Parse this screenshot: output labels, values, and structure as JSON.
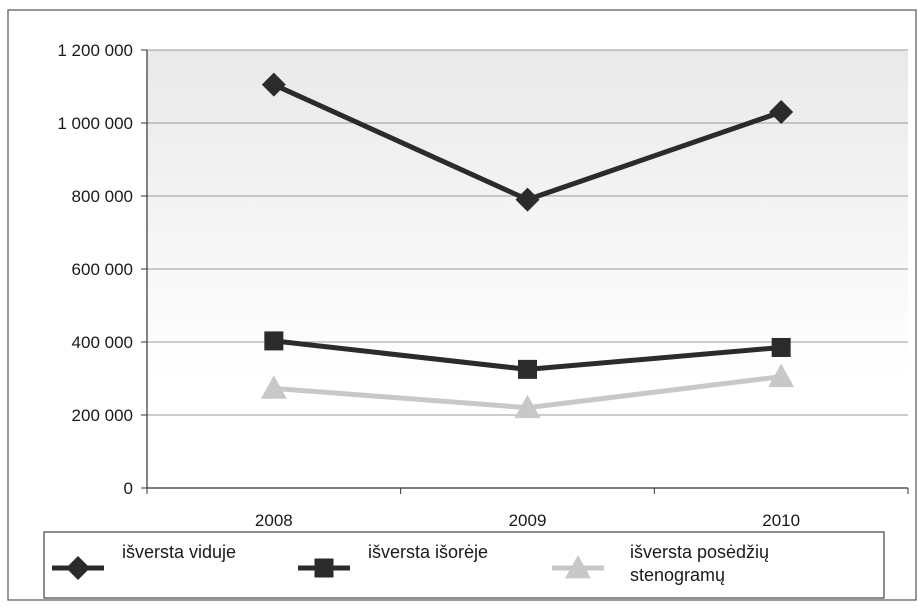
{
  "chart_data": {
    "type": "line",
    "categories": [
      "2008",
      "2009",
      "2010"
    ],
    "ylim": [
      0,
      1200000
    ],
    "yticks": [
      0,
      200000,
      400000,
      600000,
      800000,
      1000000,
      1200000
    ],
    "ytick_labels": [
      "0",
      "200 000",
      "400 000",
      "600 000",
      "800 000",
      "1 000 000",
      "1 200 000"
    ],
    "grid": true,
    "legend_position": "bottom",
    "series": [
      {
        "name": "išversta viduje",
        "values": [
          1105000,
          790000,
          1030000
        ],
        "color": "#2b2b2b",
        "marker": "diamond"
      },
      {
        "name": "išversta išorėje",
        "values": [
          403000,
          325000,
          385000
        ],
        "color": "#2b2b2b",
        "marker": "square"
      },
      {
        "name": "išversta posėdžių stenogramų",
        "name_lines": [
          "išversta posėdžių",
          "stenogramų"
        ],
        "values": [
          273000,
          220000,
          305000
        ],
        "color": "#c8c8c8",
        "marker": "triangle"
      }
    ]
  }
}
